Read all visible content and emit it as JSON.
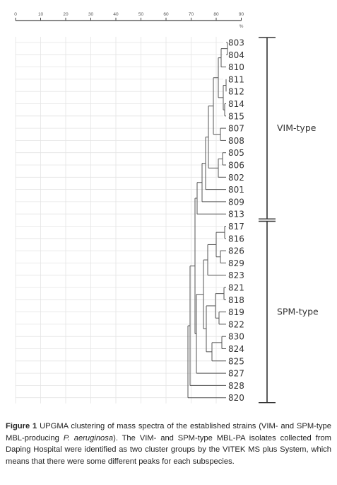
{
  "scale": {
    "ticks": [
      "0",
      "10",
      "20",
      "30",
      "40",
      "50",
      "60",
      "70",
      "80",
      "90"
    ],
    "unit": "%"
  },
  "leaves": [
    "803",
    "804",
    "810",
    "811",
    "812",
    "814",
    "815",
    "807",
    "808",
    "805",
    "806",
    "802",
    "801",
    "809",
    "813",
    "817",
    "816",
    "826",
    "829",
    "823",
    "821",
    "818",
    "819",
    "822",
    "830",
    "824",
    "825",
    "827",
    "828",
    "820"
  ],
  "clusters": [
    {
      "label": "VIM-type",
      "from": 0,
      "to": 14
    },
    {
      "label": "SPM-type",
      "from": 15,
      "to": 29
    }
  ],
  "caption": {
    "label": "Figure 1",
    "text_before": " UPGMA clustering of mass spectra of the established strains (VIM- and SPM-type MBL-producing ",
    "species": "P. aeruginosa",
    "text_after": "). The VIM- and SPM-type MBL-PA isolates collected from Daping Hospital were identified as two cluster groups by the VITEK MS plus System, which means that there were some different peaks for each subspecies."
  }
}
